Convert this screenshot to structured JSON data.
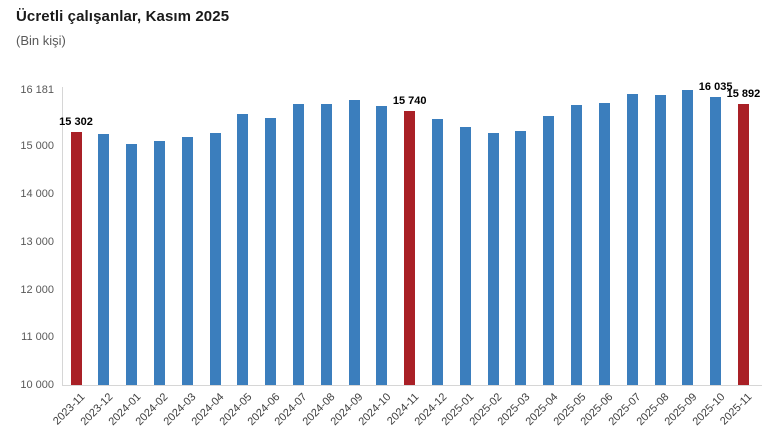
{
  "title": "Ücretli çalışanlar, Kasım 2025",
  "subtitle": "(Bin kişi)",
  "colors": {
    "bar_blue": "#3B7EBD",
    "bar_red": "#A92026",
    "axis_line": "#d6d6d6",
    "title_text": "#1a1a1a",
    "tick_text": "#595959",
    "xtick_text": "#404040",
    "value_label_text": "#000000"
  },
  "chart_data": {
    "type": "bar",
    "title": "Ücretli çalışanlar, Kasım 2025",
    "subtitle": "(Bin kişi)",
    "xlabel": "",
    "ylabel": "",
    "ylim": [
      10000,
      16181
    ],
    "grid": false,
    "legend": false,
    "y_ticks": [
      {
        "value": 16181,
        "label": "16 181"
      },
      {
        "value": 15000,
        "label": "15 000"
      },
      {
        "value": 14000,
        "label": "14 000"
      },
      {
        "value": 13000,
        "label": "13 000"
      },
      {
        "value": 12000,
        "label": "12 000"
      },
      {
        "value": 11000,
        "label": "11 000"
      },
      {
        "value": 10000,
        "label": "10 000"
      }
    ],
    "categories": [
      "2023-11",
      "2023-12",
      "2024-01",
      "2024-02",
      "2024-03",
      "2024-04",
      "2024-05",
      "2024-06",
      "2024-07",
      "2024-08",
      "2024-09",
      "2024-10",
      "2024-11",
      "2024-12",
      "2025-01",
      "2025-02",
      "2025-03",
      "2025-04",
      "2025-05",
      "2025-06",
      "2025-07",
      "2025-08",
      "2025-09",
      "2025-10",
      "2025-11"
    ],
    "values": [
      15302,
      15250,
      15060,
      15120,
      15190,
      15275,
      15680,
      15590,
      15880,
      15890,
      15970,
      15845,
      15740,
      15570,
      15410,
      15290,
      15325,
      15640,
      15865,
      15915,
      16095,
      16075,
      16181,
      16035,
      15892
    ],
    "highlight_categories": [
      "2023-11",
      "2024-11",
      "2025-11"
    ],
    "data_labels": [
      {
        "category": "2023-11",
        "text": "15 302"
      },
      {
        "category": "2024-11",
        "text": "15 740"
      },
      {
        "category": "2025-10",
        "text": "16 035"
      },
      {
        "category": "2025-11",
        "text": "15 892"
      }
    ]
  }
}
